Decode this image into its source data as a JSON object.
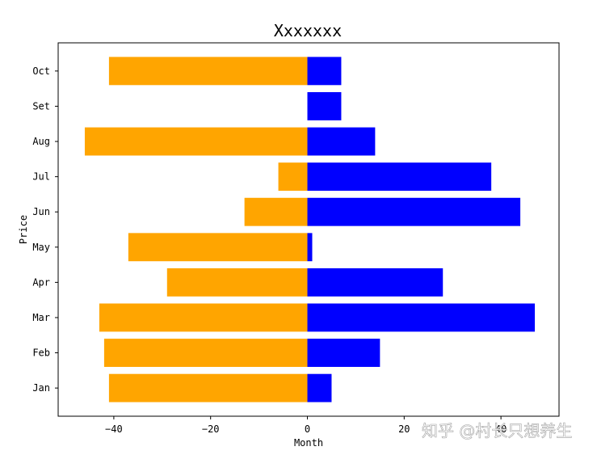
{
  "chart_data": {
    "type": "bar",
    "orientation": "horizontal",
    "title": "Xxxxxxx",
    "xlabel": "Month",
    "ylabel": "Price",
    "categories": [
      "Jan",
      "Feb",
      "Mar",
      "Apr",
      "May",
      "Jun",
      "Jul",
      "Aug",
      "Set",
      "Oct"
    ],
    "series": [
      {
        "color": "#0000ff",
        "values": [
          5,
          15,
          47,
          28,
          1,
          44,
          38,
          14,
          7,
          7
        ]
      },
      {
        "color": "#ffa500",
        "values": [
          -41,
          -42,
          -43,
          -29,
          -37,
          -13,
          -6,
          -46,
          0,
          -41
        ]
      }
    ],
    "xlim": [
      -51.5,
      52
    ],
    "x_ticks": [
      -40,
      -20,
      0,
      20,
      40
    ],
    "grid": false,
    "legend": "none"
  },
  "watermark": {
    "text": "知乎 @村长只想养生"
  }
}
